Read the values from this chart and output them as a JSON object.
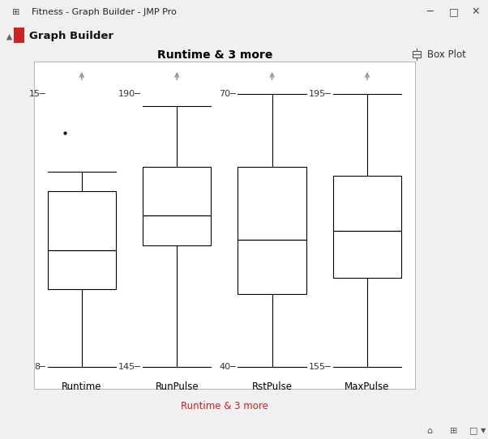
{
  "title": "Runtime & 3 more",
  "xlabel": "Runtime & 3 more",
  "window_title": "Fitness - Graph Builder - JMP Pro",
  "box_plots": [
    {
      "label": "Runtime",
      "whisker_low": 8,
      "q1": 10.0,
      "median": 11.0,
      "q3": 12.5,
      "whisker_high": 13.0,
      "outliers": [
        14.0
      ],
      "axis_min": 8,
      "axis_max": 15,
      "axis_min_label": "8",
      "axis_max_label": "15"
    },
    {
      "label": "RunPulse",
      "whisker_low": 145,
      "q1": 165,
      "median": 170,
      "q3": 178,
      "whisker_high": 188,
      "outliers": [],
      "axis_min": 145,
      "axis_max": 190,
      "axis_min_label": "145",
      "axis_max_label": "190"
    },
    {
      "label": "RstPulse",
      "whisker_low": 40,
      "q1": 48,
      "median": 54,
      "q3": 62,
      "whisker_high": 70,
      "outliers": [],
      "axis_min": 40,
      "axis_max": 70,
      "axis_min_label": "40",
      "axis_max_label": "70"
    },
    {
      "label": "MaxPulse",
      "whisker_low": 155,
      "q1": 168,
      "median": 175,
      "q3": 183,
      "whisker_high": 195,
      "outliers": [],
      "axis_min": 155,
      "axis_max": 195,
      "axis_min_label": "155",
      "axis_max_label": "195"
    }
  ],
  "bg_color": "#f0f0f0",
  "plot_bg_color": "#ffffff",
  "box_color": "#ffffff",
  "box_edge_color": "#000000",
  "whisker_color": "#000000",
  "outlier_color": "#000000",
  "arrow_color": "#999999",
  "title_fontsize": 10,
  "label_fontsize": 8.5,
  "tick_label_fontsize": 8,
  "legend_label": "Box Plot",
  "header_bg": "#e8e8e8",
  "titlebar_bg": "#d0d0d0",
  "statusbar_bg": "#e8e8e8"
}
